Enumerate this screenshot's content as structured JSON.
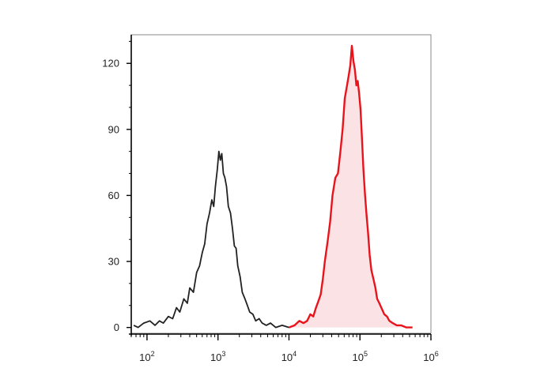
{
  "chart_data": {
    "type": "histogram",
    "title": "",
    "xlabel": "",
    "ylabel": "",
    "x_scale": "log",
    "xlim": [
      60,
      1000000
    ],
    "ylim": [
      -3,
      133
    ],
    "grid": false,
    "legend": "none",
    "y_ticks": [
      "0",
      "30",
      "60",
      "90",
      "120"
    ],
    "y_tick_values": [
      0,
      30,
      60,
      90,
      120
    ],
    "x_ticks": [
      {
        "value": 100,
        "base": "10",
        "exp": "2"
      },
      {
        "value": 1000,
        "base": "10",
        "exp": "3"
      },
      {
        "value": 10000,
        "base": "10",
        "exp": "4"
      },
      {
        "value": 100000,
        "base": "10",
        "exp": "5"
      },
      {
        "value": 1000000,
        "base": "10",
        "exp": "6"
      }
    ],
    "series": [
      {
        "color": "#222222",
        "fill": "none",
        "points": [
          [
            65,
            1
          ],
          [
            75,
            0
          ],
          [
            90,
            2
          ],
          [
            110,
            3
          ],
          [
            130,
            1
          ],
          [
            150,
            3
          ],
          [
            170,
            2
          ],
          [
            200,
            5
          ],
          [
            230,
            4
          ],
          [
            260,
            9
          ],
          [
            290,
            7
          ],
          [
            330,
            13
          ],
          [
            370,
            11
          ],
          [
            400,
            18
          ],
          [
            450,
            16
          ],
          [
            500,
            25
          ],
          [
            550,
            28
          ],
          [
            600,
            34
          ],
          [
            650,
            38
          ],
          [
            700,
            47
          ],
          [
            760,
            52
          ],
          [
            820,
            58
          ],
          [
            870,
            55
          ],
          [
            920,
            64
          ],
          [
            980,
            72
          ],
          [
            1030,
            80
          ],
          [
            1080,
            76
          ],
          [
            1130,
            79
          ],
          [
            1190,
            70
          ],
          [
            1250,
            68
          ],
          [
            1320,
            64
          ],
          [
            1400,
            55
          ],
          [
            1500,
            52
          ],
          [
            1600,
            45
          ],
          [
            1700,
            37
          ],
          [
            1800,
            36
          ],
          [
            1900,
            28
          ],
          [
            2050,
            23
          ],
          [
            2200,
            16
          ],
          [
            2400,
            13
          ],
          [
            2600,
            10
          ],
          [
            2800,
            7
          ],
          [
            3100,
            6
          ],
          [
            3400,
            3
          ],
          [
            3800,
            4
          ],
          [
            4200,
            2
          ],
          [
            4800,
            1
          ],
          [
            5500,
            2
          ],
          [
            6500,
            0
          ],
          [
            8000,
            1
          ],
          [
            10000,
            0
          ]
        ]
      },
      {
        "color": "#e8141c",
        "fill": "#fbe3e5",
        "points": [
          [
            10000,
            0
          ],
          [
            12000,
            1
          ],
          [
            14000,
            3
          ],
          [
            16000,
            2
          ],
          [
            18000,
            3
          ],
          [
            20000,
            6
          ],
          [
            22000,
            5
          ],
          [
            24000,
            9
          ],
          [
            26000,
            12
          ],
          [
            28000,
            15
          ],
          [
            30000,
            22
          ],
          [
            32000,
            30
          ],
          [
            35000,
            39
          ],
          [
            38000,
            48
          ],
          [
            41000,
            60
          ],
          [
            45000,
            68
          ],
          [
            49000,
            70
          ],
          [
            53000,
            80
          ],
          [
            57000,
            90
          ],
          [
            61000,
            104
          ],
          [
            65000,
            109
          ],
          [
            69000,
            114
          ],
          [
            73000,
            119
          ],
          [
            77000,
            128
          ],
          [
            81000,
            121
          ],
          [
            85000,
            117
          ],
          [
            89000,
            110
          ],
          [
            93000,
            112
          ],
          [
            97000,
            107
          ],
          [
            102000,
            99
          ],
          [
            107000,
            85
          ],
          [
            112000,
            72
          ],
          [
            118000,
            60
          ],
          [
            124000,
            51
          ],
          [
            130000,
            43
          ],
          [
            137000,
            33
          ],
          [
            145000,
            26
          ],
          [
            155000,
            22
          ],
          [
            165000,
            18
          ],
          [
            175000,
            13
          ],
          [
            188000,
            11
          ],
          [
            200000,
            9
          ],
          [
            220000,
            6
          ],
          [
            240000,
            5
          ],
          [
            260000,
            3
          ],
          [
            290000,
            2
          ],
          [
            330000,
            1
          ],
          [
            380000,
            1
          ],
          [
            450000,
            0
          ],
          [
            550000,
            0
          ]
        ]
      }
    ]
  }
}
